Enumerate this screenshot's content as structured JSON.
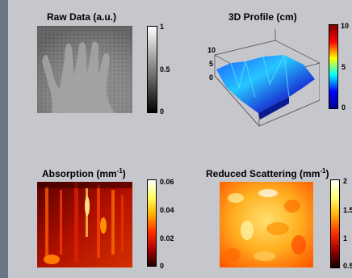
{
  "panels": {
    "raw": {
      "title": "Raw Data (a.u.)",
      "colormap": "gray",
      "ticks": [
        "1",
        "0.5",
        "0"
      ]
    },
    "profile": {
      "title": "3D Profile (cm)",
      "colormap": "jet",
      "axis_ticks": [
        "10",
        "5",
        "0"
      ],
      "ticks": [
        "10",
        "5",
        "0"
      ]
    },
    "absorption": {
      "title_main": "Absorption (mm",
      "title_sup": "-1",
      "title_end": ")",
      "colormap": "hot",
      "ticks": [
        "0.06",
        "0.04",
        "0.02",
        "0"
      ]
    },
    "scattering": {
      "title_main": "Reduced Scattering (mm",
      "title_sup": "-1",
      "title_end": ")",
      "colormap": "hot",
      "ticks": [
        "2",
        "1.5",
        "1",
        "0.5"
      ]
    }
  }
}
